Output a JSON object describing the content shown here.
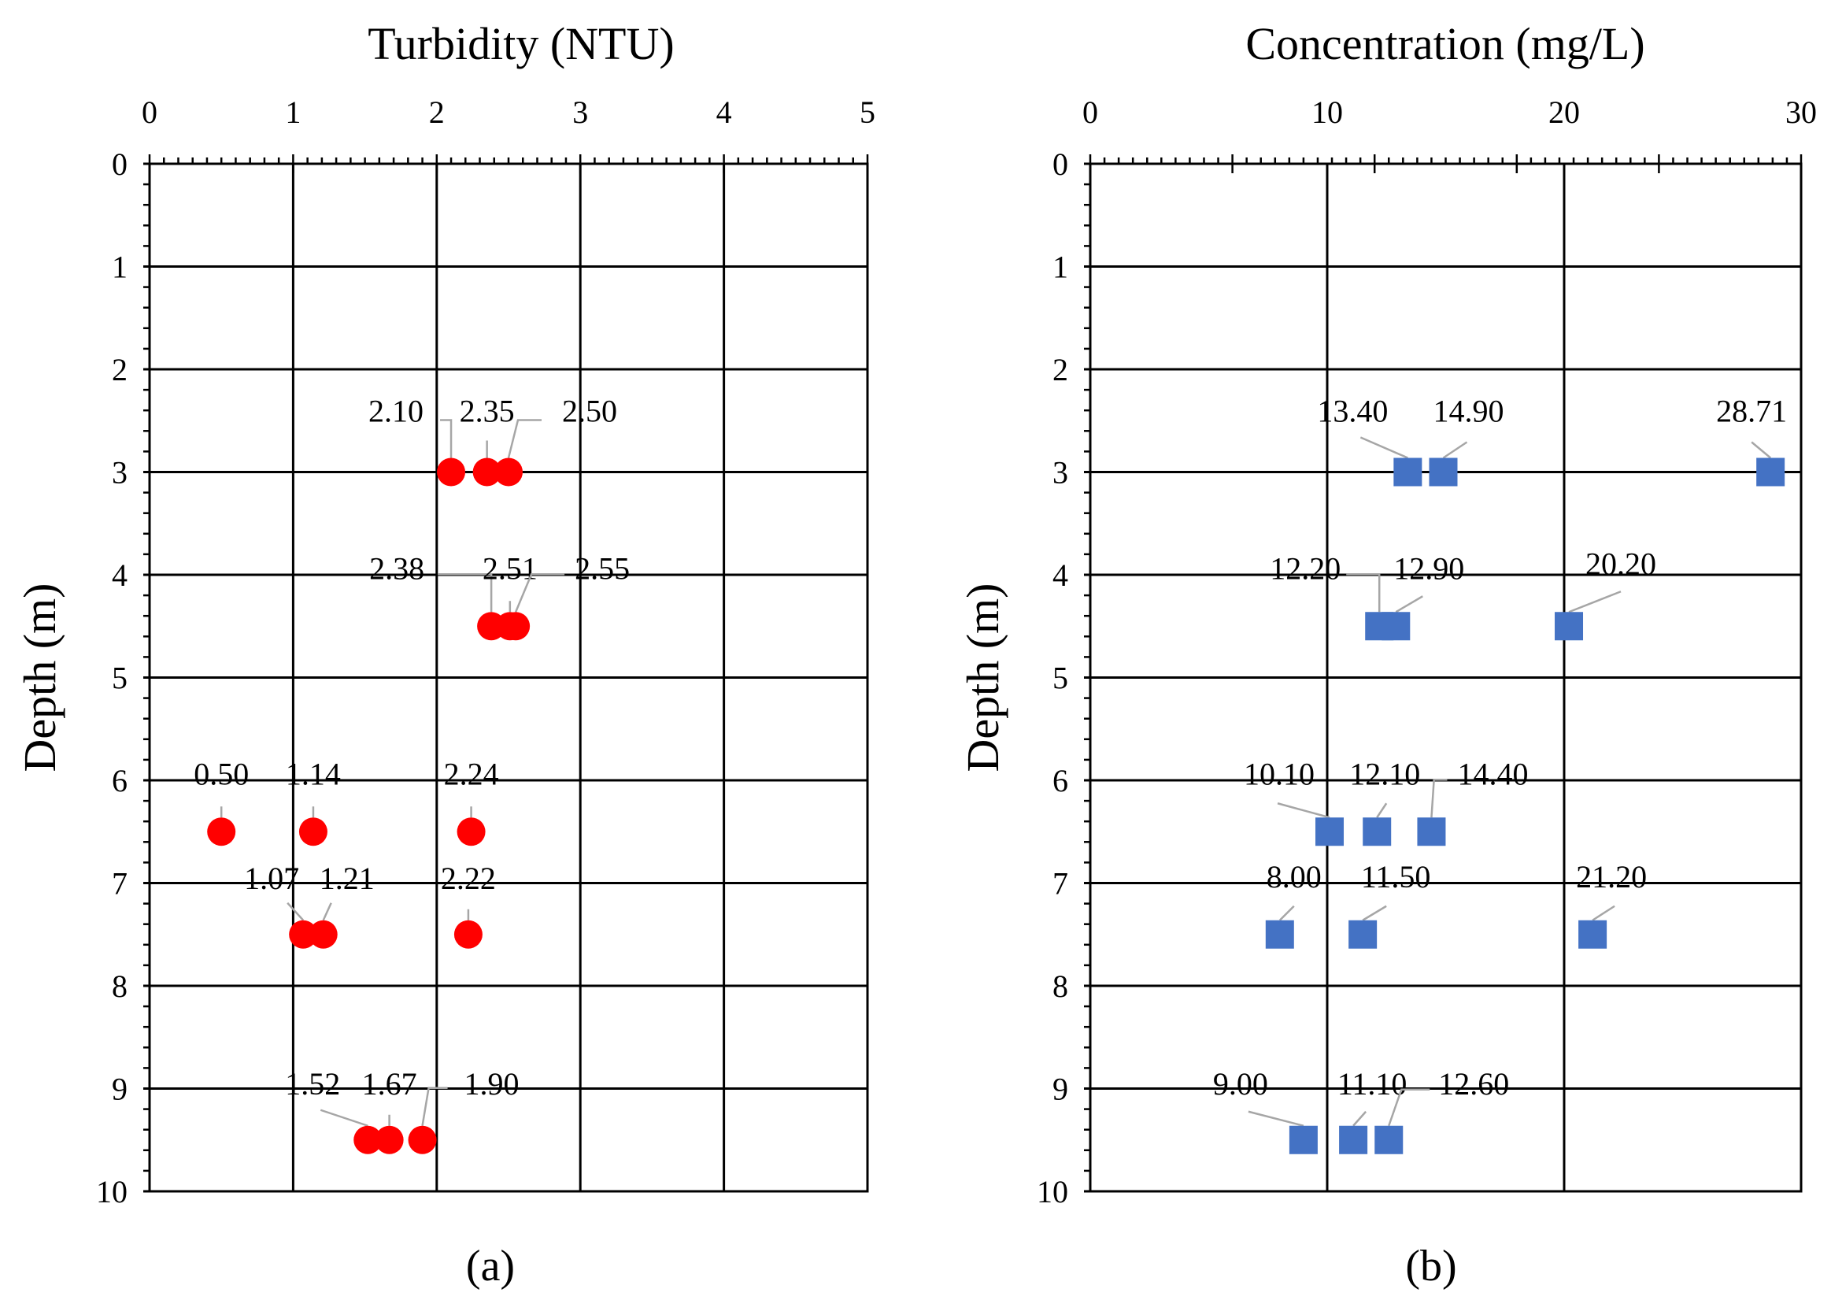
{
  "figure": {
    "caption_a": "(a)",
    "caption_b": "(b)"
  },
  "colors": {
    "turbidity_marker": "#ff0000",
    "concentration_marker": "#4472c4",
    "grid": "#000000",
    "leader_line": "#a6a6a6"
  },
  "chart_data": [
    {
      "type": "scatter",
      "panel": "(a)",
      "title": "Turbidity (NTU)",
      "xlabel": "Turbidity (NTU)",
      "ylabel": "Depth (m)",
      "xlim": [
        0,
        5
      ],
      "ylim": [
        10,
        0
      ],
      "x_ticks": [
        0,
        1,
        2,
        3,
        4,
        5
      ],
      "y_ticks": [
        0,
        1,
        2,
        3,
        4,
        5,
        6,
        7,
        8,
        9,
        10
      ],
      "x_axis_position": "top",
      "y_axis_inverted": true,
      "grid": true,
      "marker": "circle",
      "series": [
        {
          "name": "Turbidity",
          "points": [
            {
              "x": 2.1,
              "y": 3.0,
              "label": "2.10"
            },
            {
              "x": 2.35,
              "y": 3.0,
              "label": "2.35"
            },
            {
              "x": 2.5,
              "y": 3.0,
              "label": "2.50"
            },
            {
              "x": 2.38,
              "y": 4.5,
              "label": "2.38"
            },
            {
              "x": 2.51,
              "y": 4.5,
              "label": "2.51"
            },
            {
              "x": 2.55,
              "y": 4.5,
              "label": "2.55"
            },
            {
              "x": 0.5,
              "y": 6.5,
              "label": "0.50"
            },
            {
              "x": 1.14,
              "y": 6.5,
              "label": "1.14"
            },
            {
              "x": 2.24,
              "y": 6.5,
              "label": "2.24"
            },
            {
              "x": 1.07,
              "y": 7.5,
              "label": "1.07"
            },
            {
              "x": 1.21,
              "y": 7.5,
              "label": "1.21"
            },
            {
              "x": 2.22,
              "y": 7.5,
              "label": "2.22"
            },
            {
              "x": 1.52,
              "y": 9.5,
              "label": "1.52"
            },
            {
              "x": 1.67,
              "y": 9.5,
              "label": "1.67"
            },
            {
              "x": 1.9,
              "y": 9.5,
              "label": "1.90"
            }
          ]
        }
      ]
    },
    {
      "type": "scatter",
      "panel": "(b)",
      "title": "Concentration (mg/L)",
      "xlabel": "Concentration (mg/L)",
      "ylabel": "Depth (m)",
      "xlim": [
        0,
        30
      ],
      "ylim": [
        10,
        0
      ],
      "x_ticks": [
        0,
        10,
        20,
        30
      ],
      "y_ticks": [
        0,
        1,
        2,
        3,
        4,
        5,
        6,
        7,
        8,
        9,
        10
      ],
      "x_axis_position": "top",
      "y_axis_inverted": true,
      "grid": true,
      "marker": "square",
      "series": [
        {
          "name": "Concentration",
          "points": [
            {
              "x": 13.4,
              "y": 3.0,
              "label": "13.40"
            },
            {
              "x": 14.9,
              "y": 3.0,
              "label": "14.90"
            },
            {
              "x": 28.71,
              "y": 3.0,
              "label": "28.71"
            },
            {
              "x": 12.2,
              "y": 4.5,
              "label": "12.20"
            },
            {
              "x": 12.9,
              "y": 4.5,
              "label": "12.90"
            },
            {
              "x": 20.2,
              "y": 4.5,
              "label": "20.20"
            },
            {
              "x": 10.1,
              "y": 6.5,
              "label": "10.10"
            },
            {
              "x": 12.1,
              "y": 6.5,
              "label": "12.10"
            },
            {
              "x": 14.4,
              "y": 6.5,
              "label": "14.40"
            },
            {
              "x": 8.0,
              "y": 7.5,
              "label": "8.00"
            },
            {
              "x": 11.5,
              "y": 7.5,
              "label": "11.50"
            },
            {
              "x": 21.2,
              "y": 7.5,
              "label": "21.20"
            },
            {
              "x": 9.0,
              "y": 9.5,
              "label": "9.00"
            },
            {
              "x": 11.1,
              "y": 9.5,
              "label": "11.10"
            },
            {
              "x": 12.6,
              "y": 9.5,
              "label": "12.60"
            }
          ]
        }
      ]
    }
  ]
}
